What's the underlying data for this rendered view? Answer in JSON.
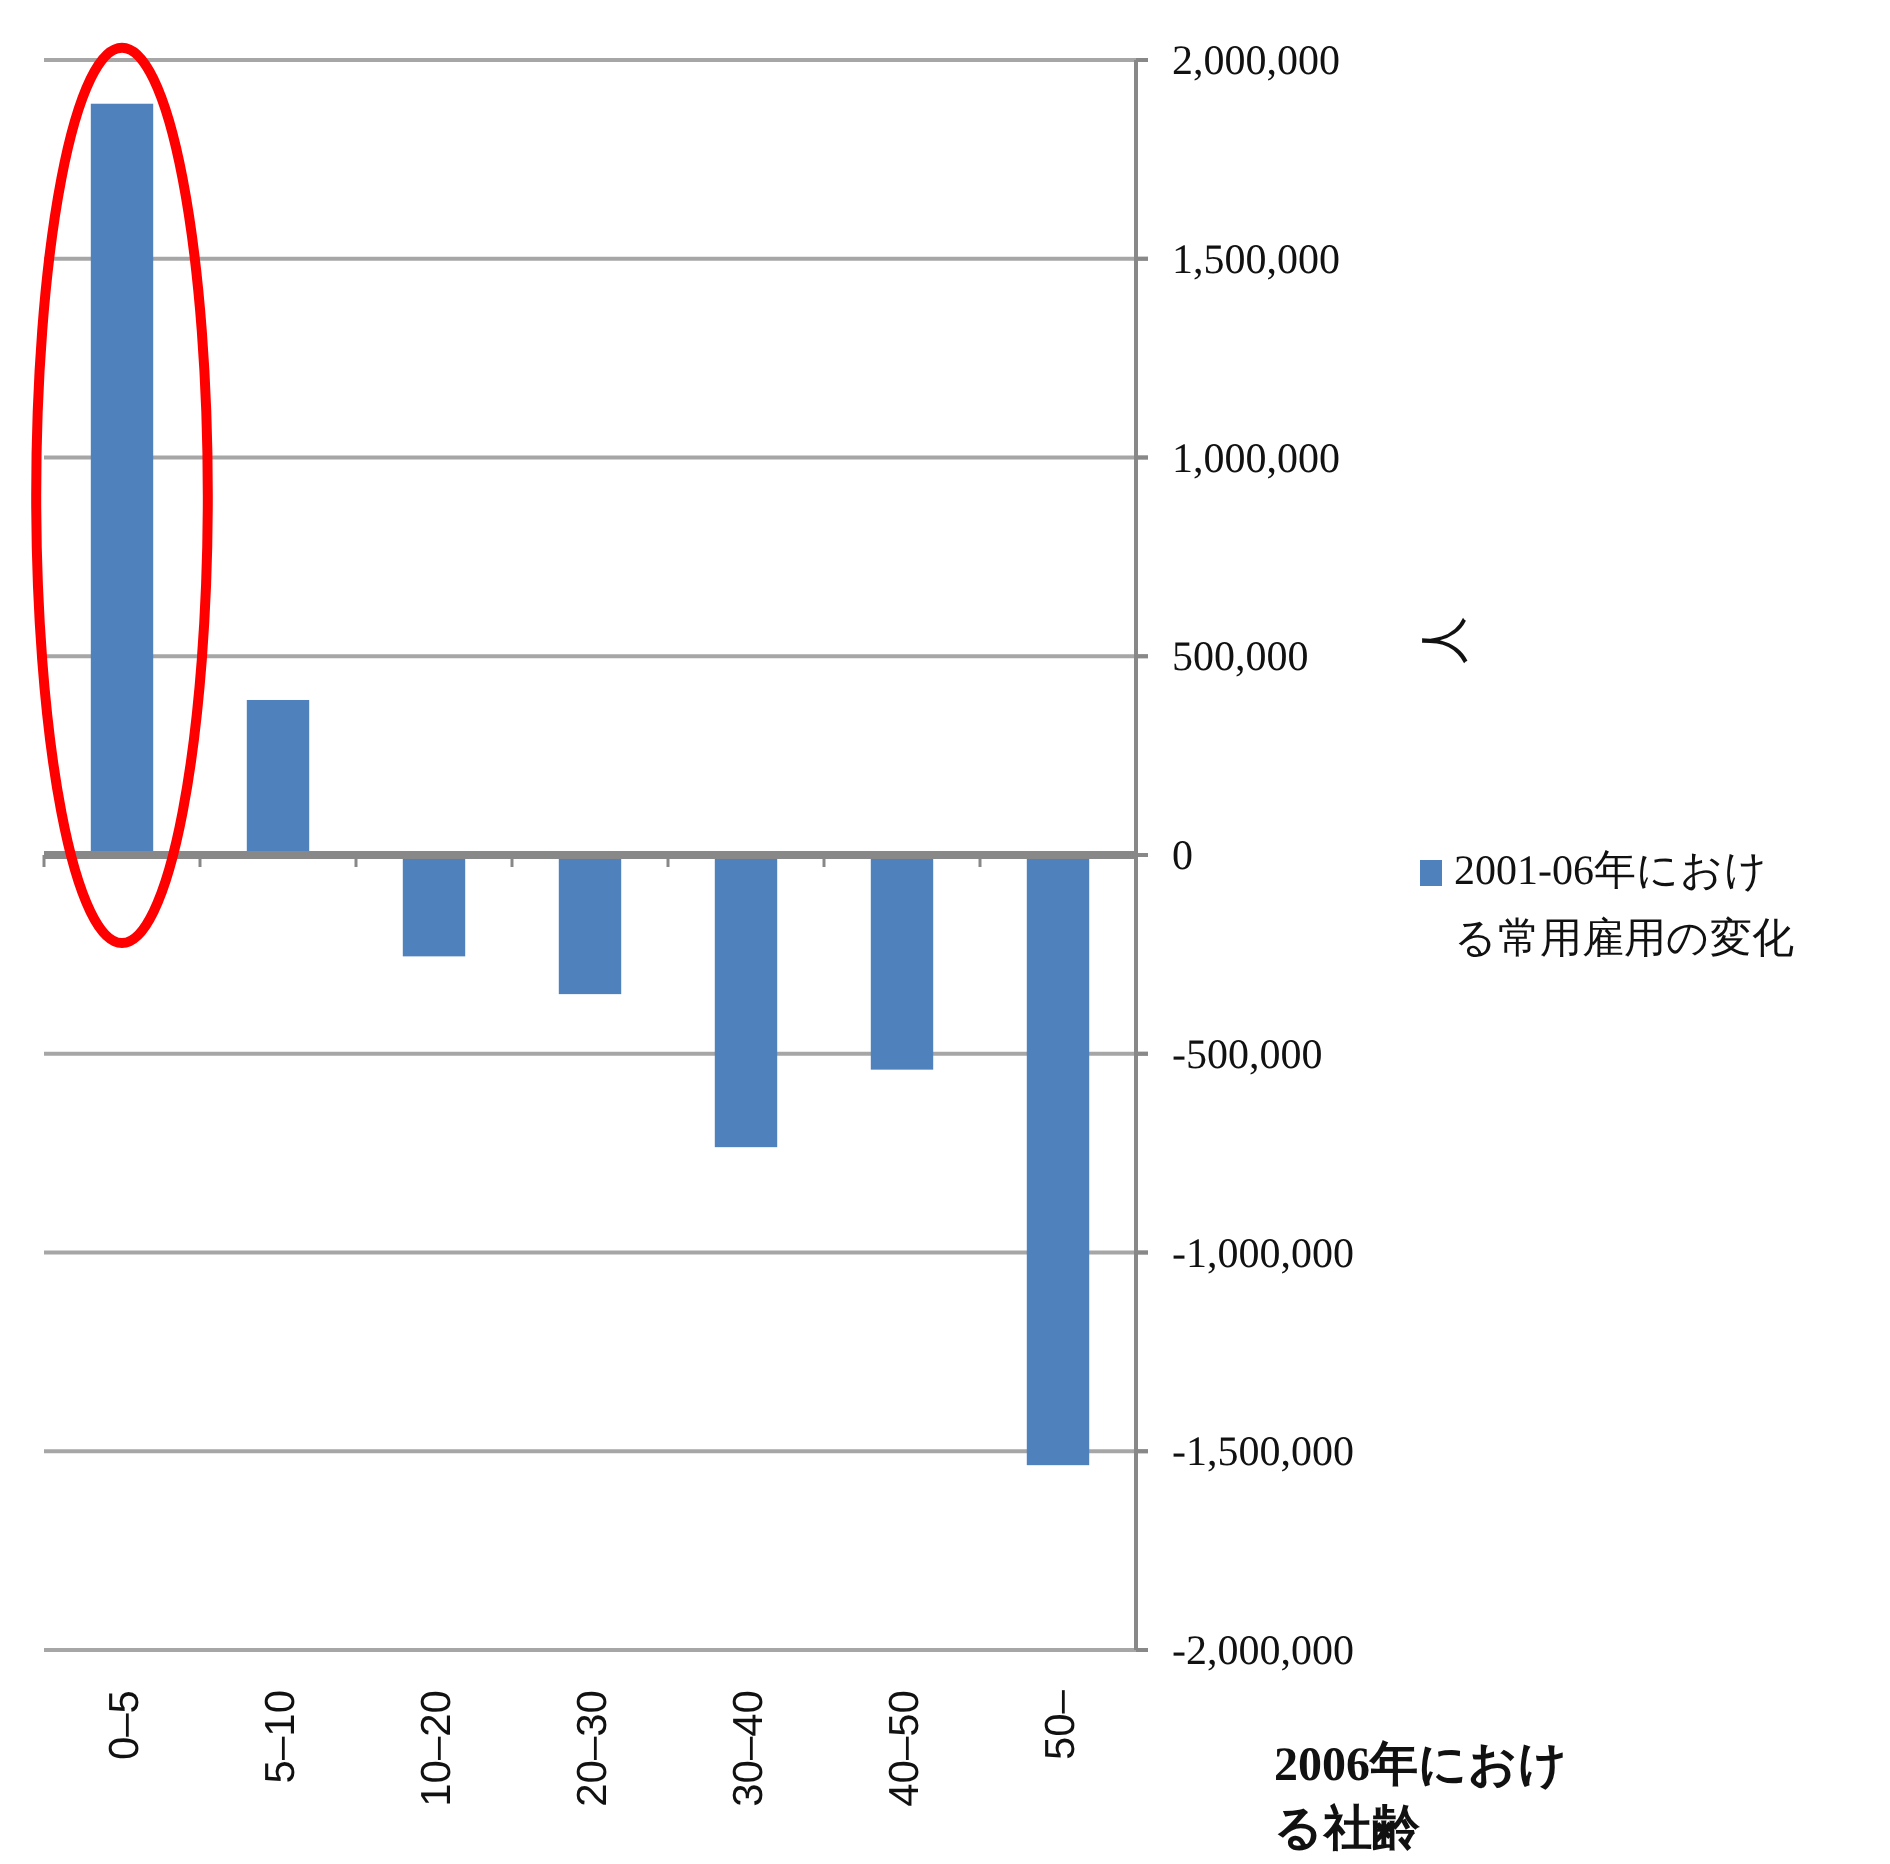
{
  "chart_data": {
    "type": "bar",
    "xlabel": "2006年における社齢",
    "ylabel": "人",
    "categories": [
      "0–5",
      "5–10",
      "10–20",
      "20–30",
      "30–40",
      "40–50",
      "50–"
    ],
    "series": [
      {
        "name": "2001-06年における常用雇用の変化",
        "color": "#4f81bd",
        "values": [
          1890000,
          390000,
          -255000,
          -350000,
          -735000,
          -540000,
          -1535000
        ]
      }
    ],
    "ylim": [
      -2000000,
      2000000
    ],
    "yticks": [
      {
        "value": -2000000,
        "label": "-2,000,000"
      },
      {
        "value": -1500000,
        "label": "-1,500,000"
      },
      {
        "value": -1000000,
        "label": "-1,000,000"
      },
      {
        "value": -500000,
        "label": "-500,000"
      },
      0,
      {
        "value": 500000,
        "label": "500,000"
      },
      {
        "value": 1000000,
        "label": "1,000,000"
      },
      {
        "value": 1500000,
        "label": "1,500,000"
      },
      {
        "value": 2000000,
        "label": "2,000,000"
      }
    ],
    "grid": "y",
    "legend": "right"
  }
}
